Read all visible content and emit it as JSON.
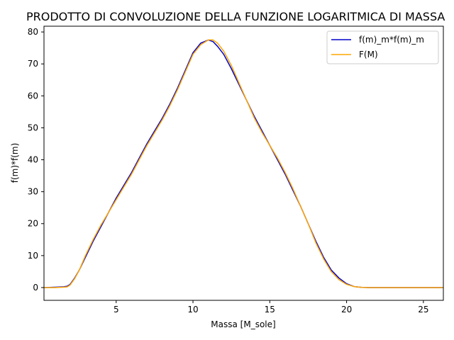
{
  "chart_data": {
    "type": "line",
    "title": "PRODOTTO DI CONVOLUZIONE DELLA FUNZIONE LOGARITMICA DI MASSA",
    "xlabel": "Massa [M_sole]",
    "ylabel": "f(m)*f(m)",
    "xlim": [
      0.3,
      26.3
    ],
    "ylim": [
      -4,
      81.8
    ],
    "xticks": [
      5,
      10,
      15,
      20,
      25
    ],
    "yticks": [
      0,
      10,
      20,
      30,
      40,
      50,
      60,
      70,
      80
    ],
    "grid": false,
    "legend_position": "top-right",
    "series": [
      {
        "name": "f(m)_m*f(m)_m",
        "color": "#0000cc",
        "x": [
          0.3,
          1.0,
          1.5,
          1.8,
          2.0,
          2.3,
          2.6,
          3.0,
          3.5,
          4.0,
          4.5,
          5.0,
          5.5,
          6.0,
          6.5,
          7.0,
          7.5,
          8.0,
          8.5,
          9.0,
          9.5,
          10.0,
          10.5,
          11.0,
          11.3,
          11.6,
          12.0,
          12.5,
          13.0,
          13.5,
          14.0,
          14.5,
          15.0,
          15.5,
          16.0,
          16.5,
          17.0,
          17.5,
          18.0,
          18.5,
          19.0,
          19.5,
          20.0,
          20.5,
          21.0,
          21.5,
          22.0,
          23.0,
          24.0,
          25.0,
          26.3
        ],
        "y": [
          0,
          0.1,
          0.2,
          0.4,
          1.0,
          3.0,
          5.5,
          9.5,
          14.5,
          19.0,
          23.5,
          28.0,
          32.0,
          36.0,
          40.5,
          45.0,
          49.0,
          53.0,
          57.5,
          62.5,
          68.0,
          73.5,
          76.5,
          77.5,
          77.0,
          75.5,
          73.0,
          68.5,
          63.5,
          58.5,
          53.5,
          49.0,
          44.5,
          40.0,
          35.5,
          30.5,
          25.5,
          20.0,
          14.5,
          9.5,
          5.5,
          3.0,
          1.2,
          0.3,
          0.05,
          0,
          0,
          0,
          0,
          0,
          0
        ]
      },
      {
        "name": "F(M)",
        "color": "#ffa500",
        "x": [
          0.3,
          1.0,
          1.5,
          1.8,
          2.0,
          2.3,
          2.6,
          3.0,
          3.5,
          4.0,
          4.5,
          5.0,
          5.5,
          6.0,
          6.5,
          7.0,
          7.5,
          8.0,
          8.5,
          9.0,
          9.5,
          10.0,
          10.5,
          11.0,
          11.3,
          11.6,
          12.0,
          12.5,
          13.0,
          13.5,
          14.0,
          14.5,
          15.0,
          15.5,
          16.0,
          16.5,
          17.0,
          17.5,
          18.0,
          18.5,
          19.0,
          19.5,
          20.0,
          20.5,
          21.0,
          21.5,
          22.0,
          23.0,
          24.0,
          25.0,
          26.3
        ],
        "y": [
          0,
          0,
          0.1,
          0.2,
          0.8,
          2.8,
          5.5,
          10.0,
          15.0,
          19.5,
          23.5,
          27.5,
          31.5,
          35.5,
          40.0,
          44.5,
          48.5,
          52.5,
          57.0,
          62.0,
          67.5,
          73.0,
          76.0,
          77.5,
          77.5,
          76.5,
          74.0,
          69.5,
          64.0,
          58.5,
          53.0,
          48.5,
          44.5,
          40.5,
          36.0,
          31.0,
          25.5,
          20.0,
          14.0,
          9.0,
          5.0,
          2.5,
          1.0,
          0.3,
          0.05,
          0,
          0,
          0,
          0,
          0,
          0
        ]
      }
    ]
  }
}
